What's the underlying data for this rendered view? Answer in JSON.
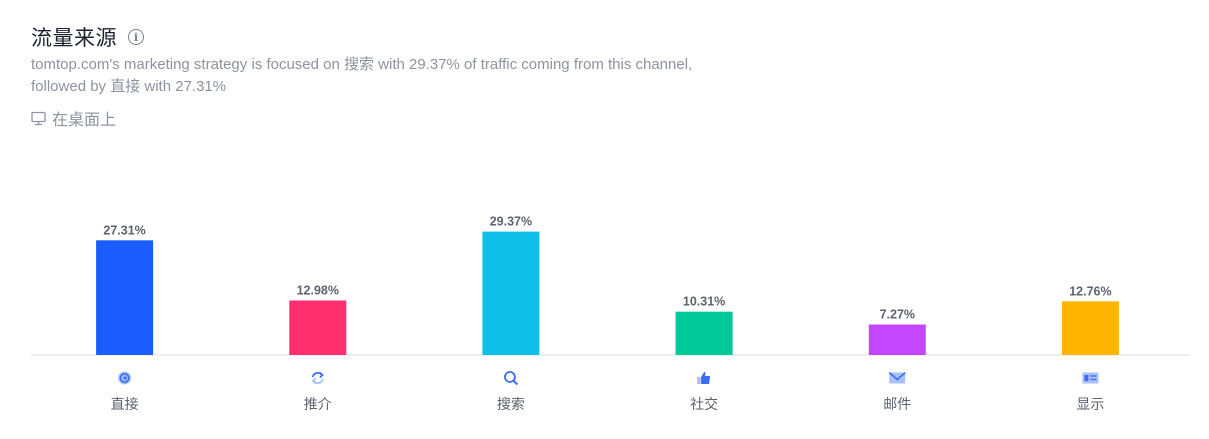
{
  "header": {
    "title": "流量来源",
    "info_icon": "info-icon",
    "description_line1": "tomtop.com's marketing strategy is focused on 搜索 with 29.37% of traffic coming from this channel,",
    "description_line2": "followed by 直接 with 27.31%",
    "device_icon": "desktop-icon",
    "device_label": "在桌面上"
  },
  "chart_data": {
    "type": "bar",
    "title": "",
    "xlabel": "",
    "ylabel": "",
    "ylim": [
      0,
      40
    ],
    "grid": false,
    "categories": [
      "直接",
      "推介",
      "搜索",
      "社交",
      "邮件",
      "显示"
    ],
    "values": [
      27.31,
      12.98,
      29.37,
      10.31,
      7.27,
      12.76
    ],
    "data_labels": [
      "27.31%",
      "12.98%",
      "29.37%",
      "10.31%",
      "7.27%",
      "12.76%"
    ],
    "colors": [
      "#1a5cff",
      "#ff2e6e",
      "#10bfe8",
      "#00c896",
      "#c447ff",
      "#ffb400"
    ],
    "category_icons": [
      "direct-icon",
      "referral-icon",
      "search-icon",
      "social-icon",
      "mail-icon",
      "display-icon"
    ]
  }
}
